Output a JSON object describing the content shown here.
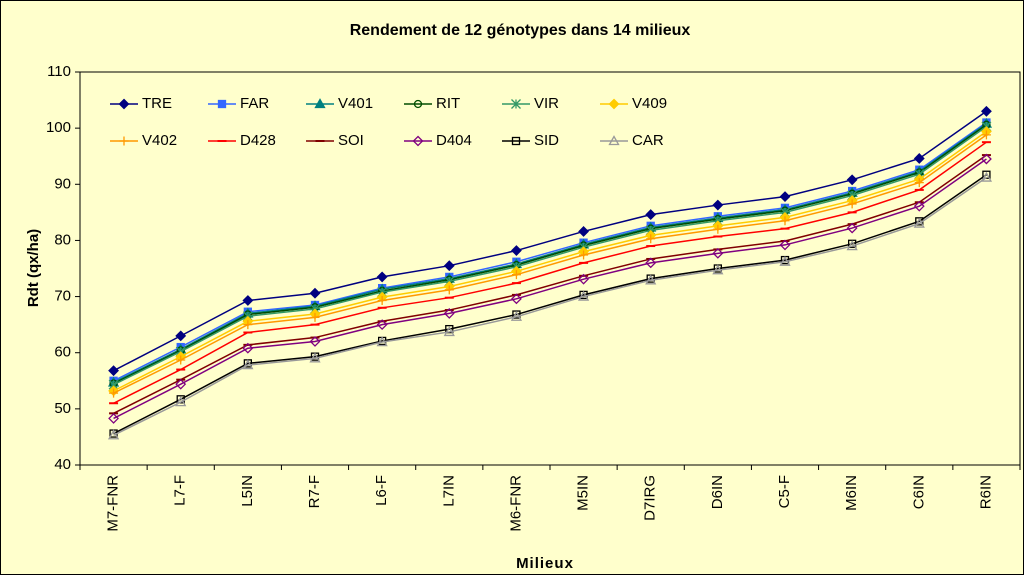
{
  "chart_data": {
    "type": "line",
    "title": "Rendement de 12 génotypes dans 14 milieux",
    "x_label": "Milieux",
    "y_label": "Rdt (qx/ha)",
    "categories": [
      "M7-FNR",
      "L7-F",
      "L5IN",
      "R7-F",
      "L6-F",
      "L7IN",
      "M6-FNR",
      "M5IN",
      "D7IRG",
      "D6IN",
      "C5-F",
      "M6IN",
      "C6IN",
      "R6IN"
    ],
    "ylim": [
      40,
      110
    ],
    "yticks": [
      40,
      50,
      60,
      70,
      80,
      90,
      100,
      110
    ],
    "grid": false,
    "legend": "top-left",
    "series": [
      {
        "name": "TRE",
        "color": "#000080",
        "marker": "diamond",
        "values": [
          56.8,
          63,
          69.3,
          70.6,
          73.5,
          75.5,
          78.2,
          81.6,
          84.6,
          86.3,
          87.8,
          90.8,
          94.6,
          103
        ]
      },
      {
        "name": "FAR",
        "color": "#3366ff",
        "marker": "square",
        "values": [
          55,
          61,
          67.3,
          68.5,
          71.5,
          73.5,
          76.2,
          79.6,
          82.6,
          84.3,
          85.8,
          88.8,
          92.6,
          101
        ]
      },
      {
        "name": "V401",
        "color": "#008080",
        "marker": "triangle",
        "values": [
          54.7,
          60.6,
          67,
          68.3,
          71.3,
          73.2,
          75.8,
          79.3,
          82.3,
          84,
          85.5,
          88.5,
          92.3,
          100.8
        ]
      },
      {
        "name": "RIT",
        "color": "#004d00",
        "marker": "circle",
        "values": [
          54.5,
          60.4,
          66.8,
          68.1,
          71,
          73,
          75.6,
          79.1,
          82.1,
          83.8,
          85.3,
          88.3,
          92.1,
          100.6
        ]
      },
      {
        "name": "VIR",
        "color": "#339966",
        "marker": "star",
        "values": [
          54.3,
          60.2,
          66.5,
          67.8,
          70.8,
          72.7,
          75.3,
          78.8,
          81.8,
          83.5,
          85,
          88,
          91.8,
          100.3
        ]
      },
      {
        "name": "V409",
        "color": "#ffcc00",
        "marker": "diamond",
        "values": [
          53.2,
          59.3,
          65.6,
          66.9,
          69.9,
          71.8,
          74.5,
          78,
          80.9,
          82.6,
          84.1,
          87.1,
          90.9,
          99.4
        ]
      },
      {
        "name": "V402",
        "color": "#ff9900",
        "marker": "plus",
        "values": [
          52.8,
          58.7,
          65,
          66.3,
          69.3,
          71.2,
          73.9,
          77.4,
          80.3,
          82,
          83.5,
          86.5,
          90.3,
          98.8
        ]
      },
      {
        "name": "D428",
        "color": "#ff0000",
        "marker": "dash",
        "values": [
          51,
          57,
          63.6,
          65,
          68,
          69.8,
          72.4,
          76,
          79,
          80.7,
          82.1,
          85,
          89,
          97.5
        ]
      },
      {
        "name": "SOI",
        "color": "#800000",
        "marker": "dash",
        "values": [
          49.2,
          55.2,
          61.4,
          62.7,
          65.6,
          67.6,
          70.3,
          73.7,
          76.7,
          78.4,
          79.9,
          82.9,
          86.8,
          95.2
        ]
      },
      {
        "name": "D404",
        "color": "#800080",
        "marker": "open-diamond",
        "values": [
          48.3,
          54.4,
          60.8,
          62,
          65,
          67,
          69.6,
          73.1,
          76,
          77.7,
          79.2,
          82.2,
          86.1,
          94.5
        ]
      },
      {
        "name": "SID",
        "color": "#000000",
        "marker": "open-square",
        "values": [
          45.6,
          51.7,
          58.1,
          59.3,
          62.1,
          64.2,
          66.8,
          70.3,
          73.2,
          75,
          76.5,
          79.4,
          83.4,
          91.7
        ]
      },
      {
        "name": "CAR",
        "color": "#999999",
        "marker": "open-triangle",
        "values": [
          45.3,
          51.2,
          57.8,
          59,
          61.9,
          63.7,
          66.4,
          70,
          72.9,
          74.7,
          76.2,
          79,
          83,
          91.2
        ]
      }
    ]
  }
}
